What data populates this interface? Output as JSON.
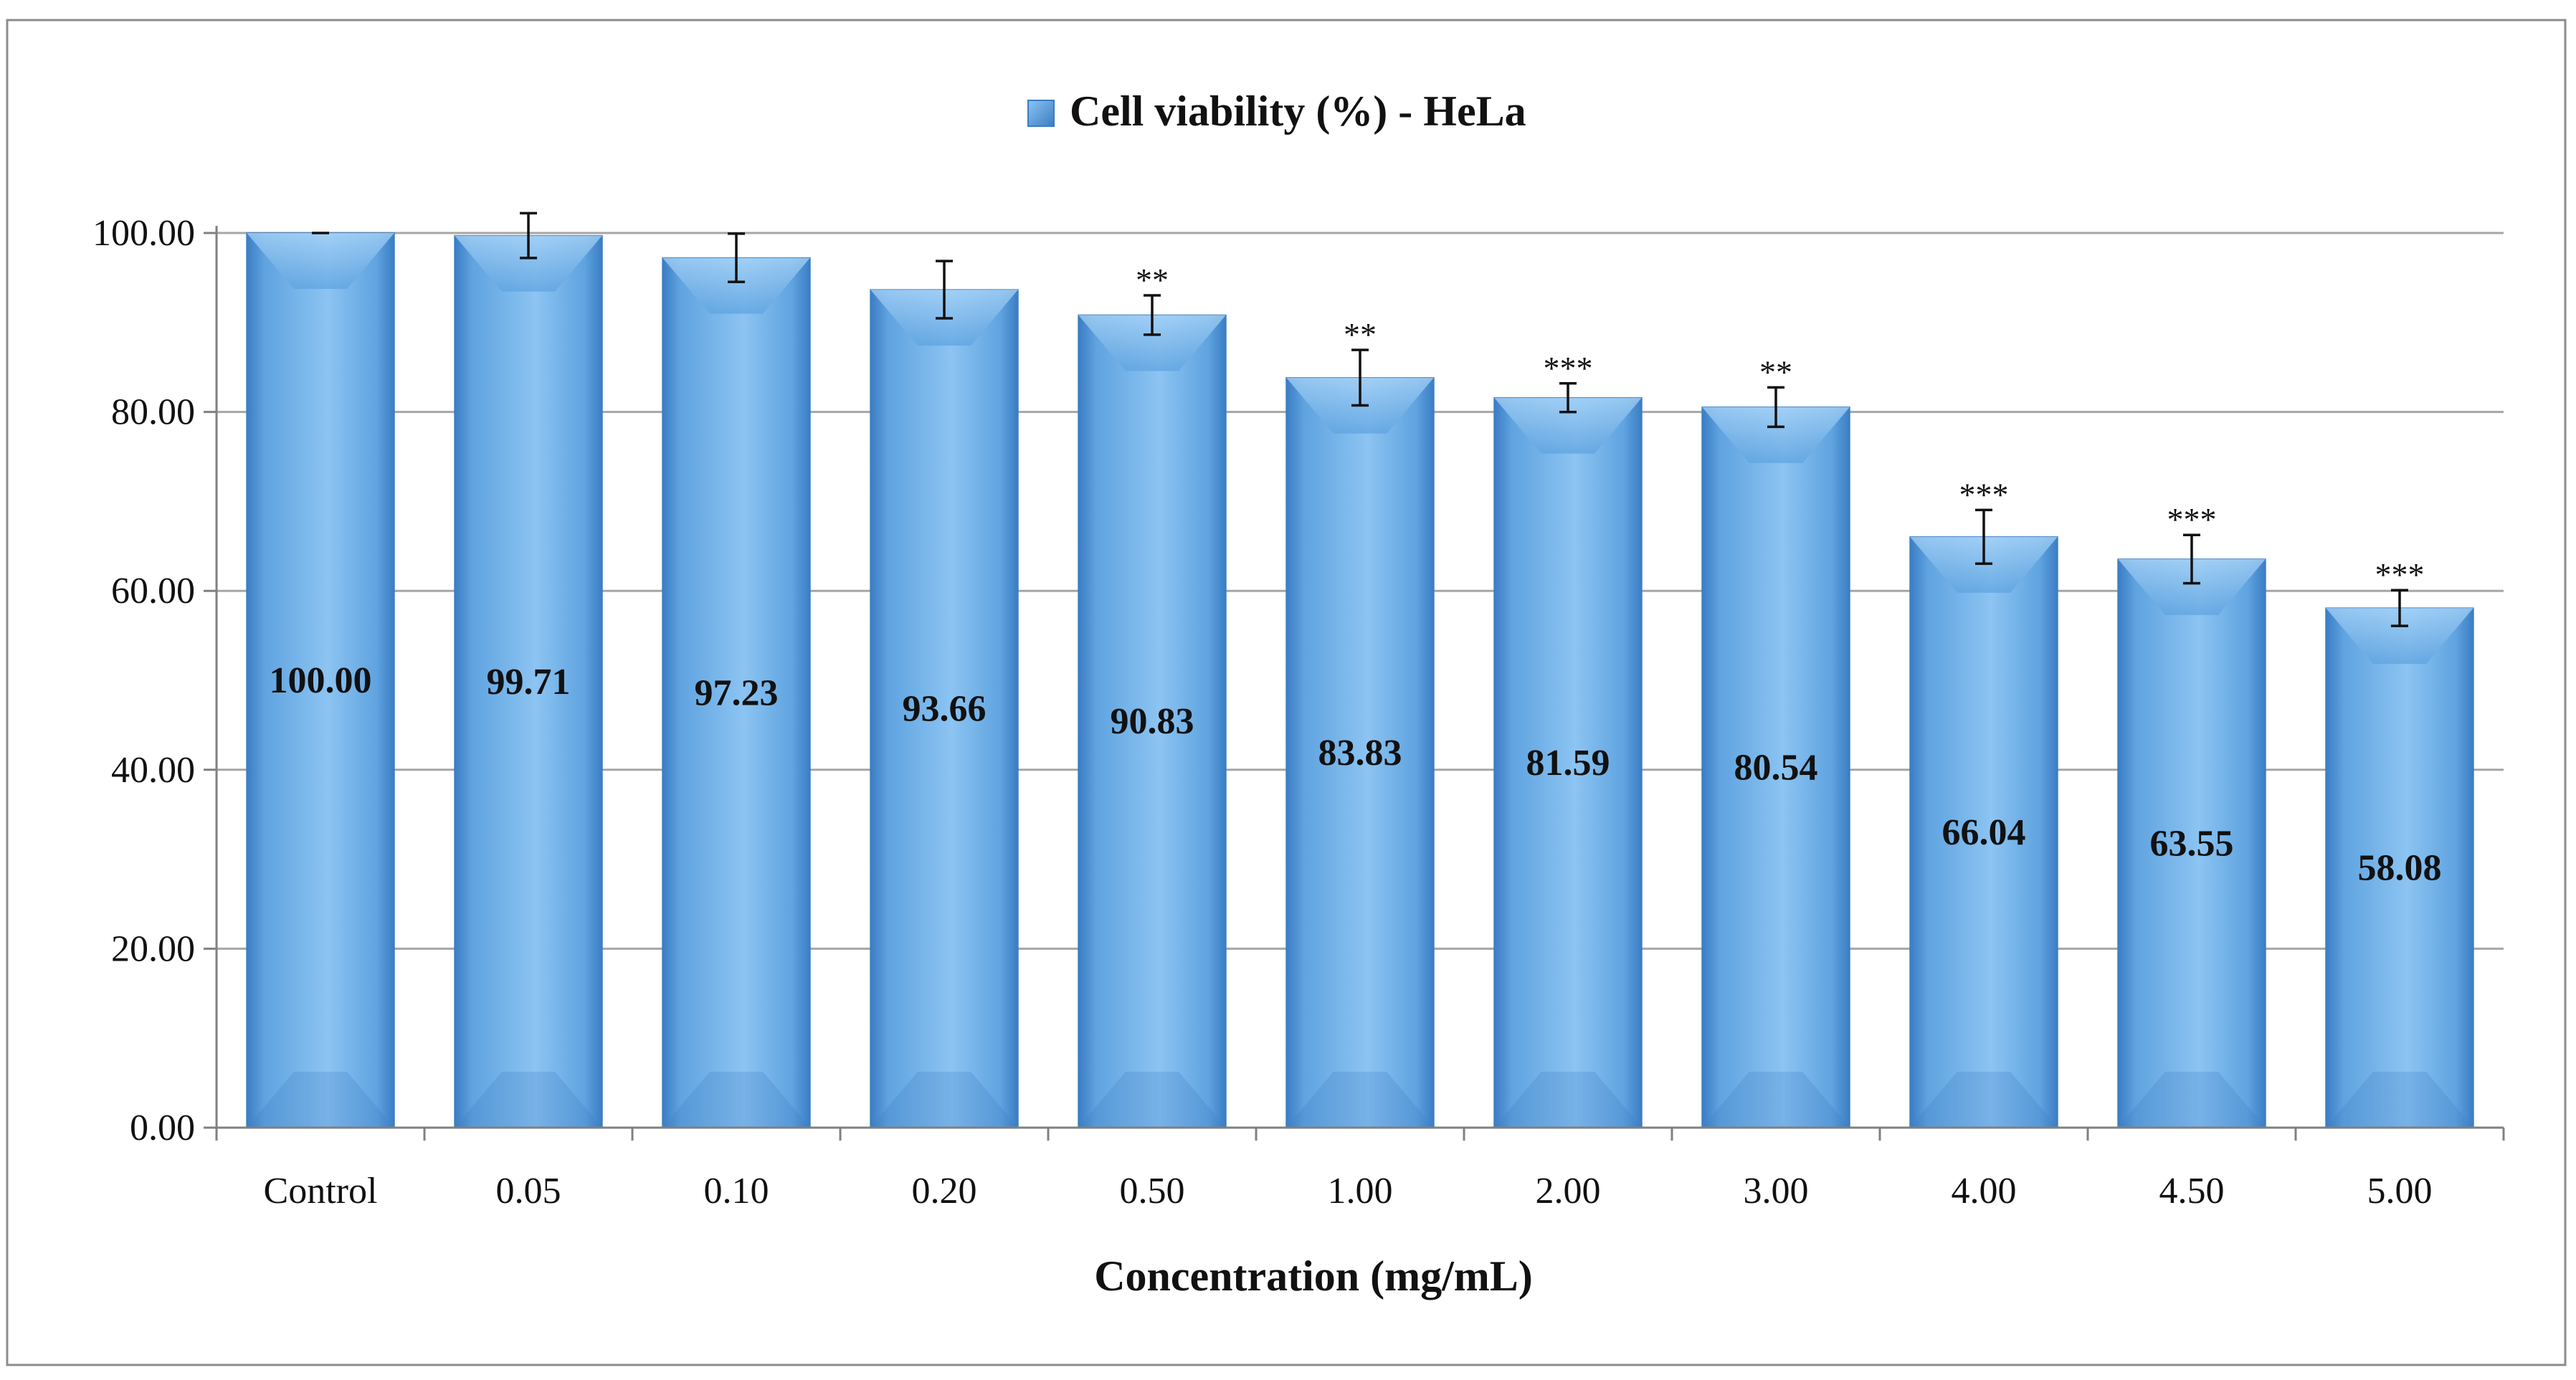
{
  "chart_data": {
    "type": "bar",
    "title": "Cell viability (%) - HeLa",
    "legend": {
      "entries": [
        "Cell viability (%) - HeLa"
      ],
      "placement": "top"
    },
    "xlabel": "Concentration (mg/mL)",
    "ylabel": "",
    "ylim": [
      0,
      100
    ],
    "y_ticks": [
      "0.00",
      "20.00",
      "40.00",
      "60.00",
      "80.00",
      "100.00"
    ],
    "y_tick_values": [
      0,
      20,
      40,
      60,
      80,
      100
    ],
    "grid": true,
    "categories": [
      "Control",
      "0.05",
      "0.10",
      "0.20",
      "0.50",
      "1.00",
      "2.00",
      "3.00",
      "4.00",
      "4.50",
      "5.00"
    ],
    "values": [
      100.0,
      99.71,
      97.23,
      93.66,
      90.83,
      83.83,
      81.59,
      80.54,
      66.04,
      63.55,
      58.08
    ],
    "value_labels": [
      "100.00",
      "99.71",
      "97.23",
      "93.66",
      "90.83",
      "83.83",
      "81.59",
      "80.54",
      "66.04",
      "63.55",
      "58.08"
    ],
    "errors": [
      0.0,
      2.5,
      2.7,
      3.2,
      2.2,
      3.1,
      1.6,
      2.2,
      3.0,
      2.7,
      2.0
    ],
    "significance": [
      "",
      "",
      "",
      "",
      "**",
      "**",
      "***",
      "**",
      "***",
      "***",
      "***"
    ],
    "colors": {
      "bar": "#5fa3e0",
      "bar_light": "#8cc4f2",
      "bar_dark": "#3a7dc4",
      "grid": "#a6a6a6",
      "axis": "#808080",
      "frame": "#8c8c8c"
    }
  }
}
